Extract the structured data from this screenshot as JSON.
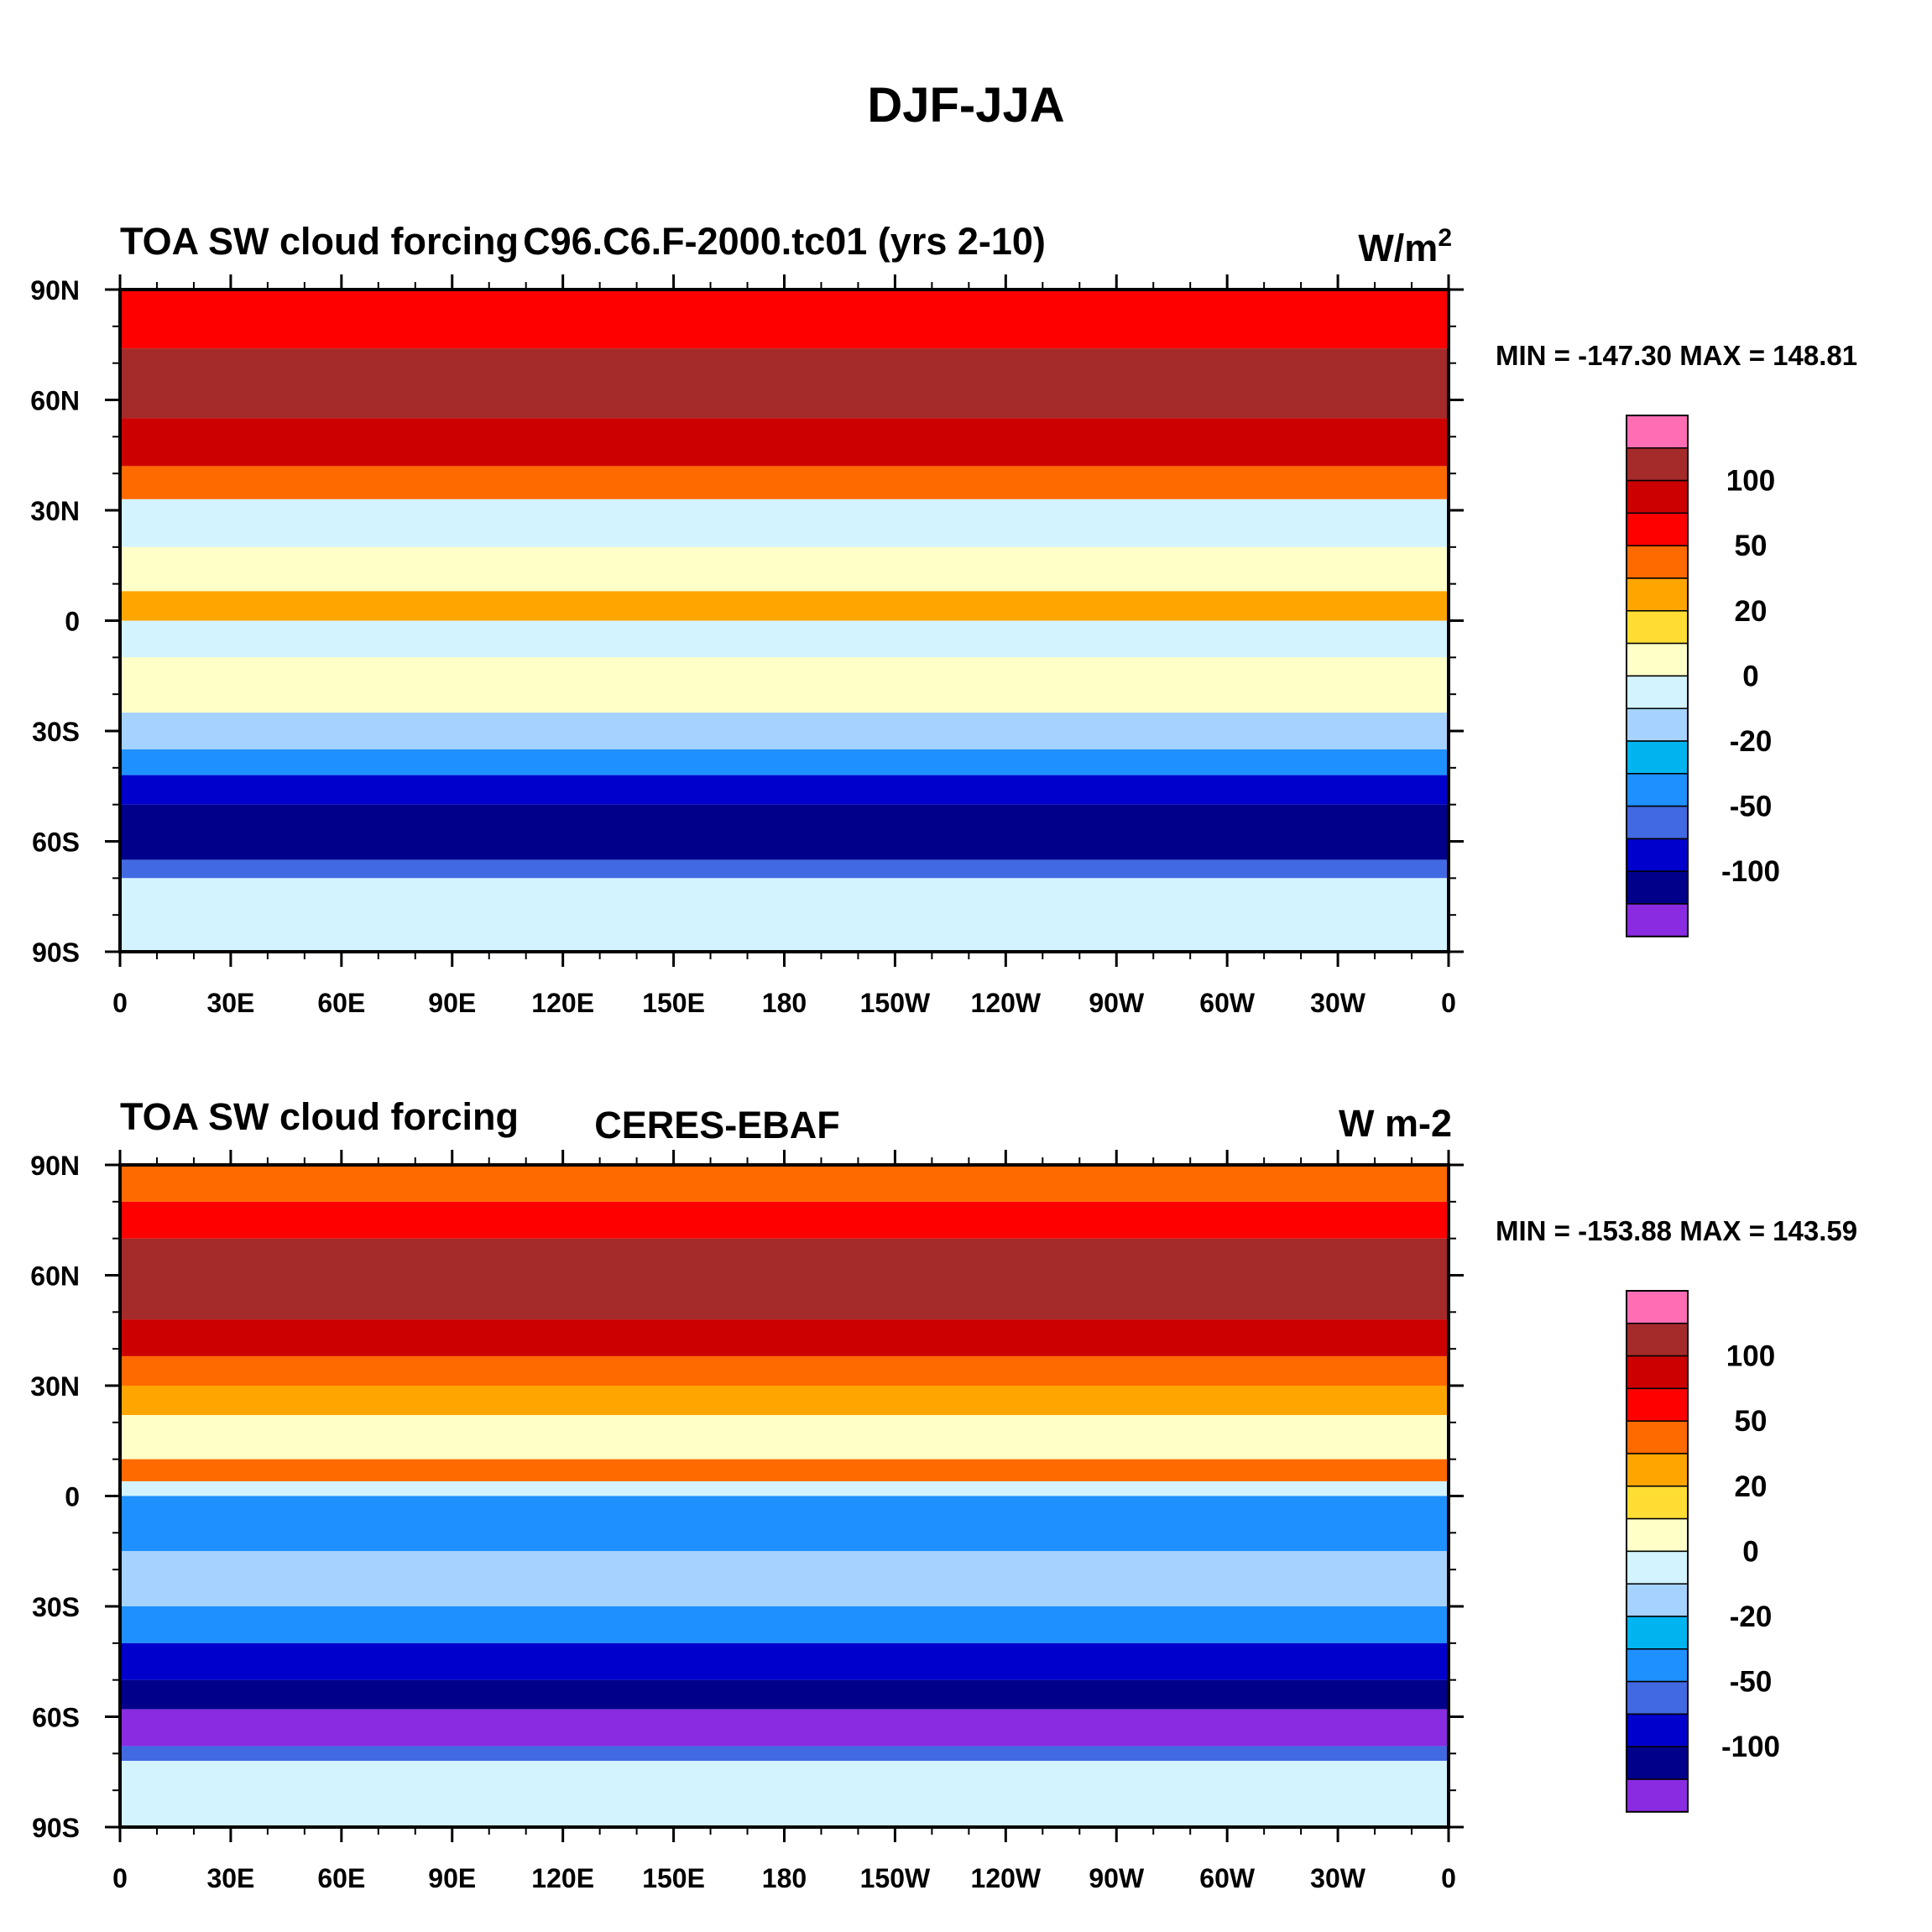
{
  "figure_title": "DJF-JJA",
  "chart_data": [
    {
      "type": "heatmap",
      "title_left": "TOA SW cloud forcing",
      "title_center": "C96.C6.F-2000.tc01 (yrs 2-10)",
      "units": "W/m",
      "units_superscript": "2",
      "stats": "MIN = -147.30 MAX = 148.81",
      "min": -147.3,
      "max": 148.81,
      "x_tick_labels": [
        "0",
        "30E",
        "60E",
        "90E",
        "120E",
        "150E",
        "180",
        "150W",
        "120W",
        "90W",
        "60W",
        "30W",
        "0"
      ],
      "y_tick_labels": [
        "90N",
        "60N",
        "30N",
        "0",
        "30S",
        "60S",
        "90S"
      ],
      "xlim": [
        0,
        360
      ],
      "ylim": [
        -90,
        90
      ],
      "colorbar_labels": [
        "100",
        "50",
        "20",
        "0",
        "-20",
        "-50",
        "-100"
      ],
      "colorbar_colors": [
        "#ff6eb4",
        "#a52a2a",
        "#cd0000",
        "#ff0000",
        "#ff6a00",
        "#ffa500",
        "#ffdd33",
        "#ffffc8",
        "#d2f3ff",
        "#a5d2ff",
        "#00b4f0",
        "#1e90ff",
        "#4169e1",
        "#0000cd",
        "#00008b",
        "#8a2be2"
      ],
      "zonal_bands": [
        {
          "lat_top": 90,
          "lat_bottom": 74,
          "color": "#ff0000"
        },
        {
          "lat_top": 74,
          "lat_bottom": 55,
          "color": "#a52a2a"
        },
        {
          "lat_top": 55,
          "lat_bottom": 42,
          "color": "#cd0000"
        },
        {
          "lat_top": 42,
          "lat_bottom": 33,
          "color": "#ff6a00"
        },
        {
          "lat_top": 33,
          "lat_bottom": 20,
          "color": "#d2f3ff"
        },
        {
          "lat_top": 20,
          "lat_bottom": 8,
          "color": "#ffffc8"
        },
        {
          "lat_top": 8,
          "lat_bottom": 0,
          "color": "#ffa500"
        },
        {
          "lat_top": 0,
          "lat_bottom": -10,
          "color": "#d2f3ff"
        },
        {
          "lat_top": -10,
          "lat_bottom": -25,
          "color": "#ffffc8"
        },
        {
          "lat_top": -25,
          "lat_bottom": -35,
          "color": "#a5d2ff"
        },
        {
          "lat_top": -35,
          "lat_bottom": -42,
          "color": "#1e90ff"
        },
        {
          "lat_top": -42,
          "lat_bottom": -50,
          "color": "#0000cd"
        },
        {
          "lat_top": -50,
          "lat_bottom": -65,
          "color": "#00008b"
        },
        {
          "lat_top": -65,
          "lat_bottom": -70,
          "color": "#4169e1"
        },
        {
          "lat_top": -70,
          "lat_bottom": -90,
          "color": "#d2f3ff"
        }
      ]
    },
    {
      "type": "heatmap",
      "title_left": "TOA SW cloud forcing",
      "title_center": "CERES-EBAF",
      "units": "W m-2",
      "units_superscript": "",
      "stats": "MIN = -153.88 MAX = 143.59",
      "min": -153.88,
      "max": 143.59,
      "x_tick_labels": [
        "0",
        "30E",
        "60E",
        "90E",
        "120E",
        "150E",
        "180",
        "150W",
        "120W",
        "90W",
        "60W",
        "30W",
        "0"
      ],
      "y_tick_labels": [
        "90N",
        "60N",
        "30N",
        "0",
        "30S",
        "60S",
        "90S"
      ],
      "xlim": [
        0,
        360
      ],
      "ylim": [
        -90,
        90
      ],
      "colorbar_labels": [
        "100",
        "50",
        "20",
        "0",
        "-20",
        "-50",
        "-100"
      ],
      "colorbar_colors": [
        "#ff6eb4",
        "#a52a2a",
        "#cd0000",
        "#ff0000",
        "#ff6a00",
        "#ffa500",
        "#ffdd33",
        "#ffffc8",
        "#d2f3ff",
        "#a5d2ff",
        "#00b4f0",
        "#1e90ff",
        "#4169e1",
        "#0000cd",
        "#00008b",
        "#8a2be2"
      ],
      "zonal_bands": [
        {
          "lat_top": 90,
          "lat_bottom": 80,
          "color": "#ff6a00"
        },
        {
          "lat_top": 80,
          "lat_bottom": 70,
          "color": "#ff0000"
        },
        {
          "lat_top": 70,
          "lat_bottom": 48,
          "color": "#a52a2a"
        },
        {
          "lat_top": 48,
          "lat_bottom": 38,
          "color": "#cd0000"
        },
        {
          "lat_top": 38,
          "lat_bottom": 30,
          "color": "#ff6a00"
        },
        {
          "lat_top": 30,
          "lat_bottom": 22,
          "color": "#ffa500"
        },
        {
          "lat_top": 22,
          "lat_bottom": 10,
          "color": "#ffffc8"
        },
        {
          "lat_top": 10,
          "lat_bottom": 4,
          "color": "#ff6a00"
        },
        {
          "lat_top": 4,
          "lat_bottom": 0,
          "color": "#d2f3ff"
        },
        {
          "lat_top": 0,
          "lat_bottom": -15,
          "color": "#1e90ff"
        },
        {
          "lat_top": -15,
          "lat_bottom": -30,
          "color": "#a5d2ff"
        },
        {
          "lat_top": -30,
          "lat_bottom": -40,
          "color": "#1e90ff"
        },
        {
          "lat_top": -40,
          "lat_bottom": -50,
          "color": "#0000cd"
        },
        {
          "lat_top": -50,
          "lat_bottom": -58,
          "color": "#00008b"
        },
        {
          "lat_top": -58,
          "lat_bottom": -68,
          "color": "#8a2be2"
        },
        {
          "lat_top": -68,
          "lat_bottom": -72,
          "color": "#4169e1"
        },
        {
          "lat_top": -72,
          "lat_bottom": -90,
          "color": "#d2f3ff"
        }
      ]
    }
  ]
}
